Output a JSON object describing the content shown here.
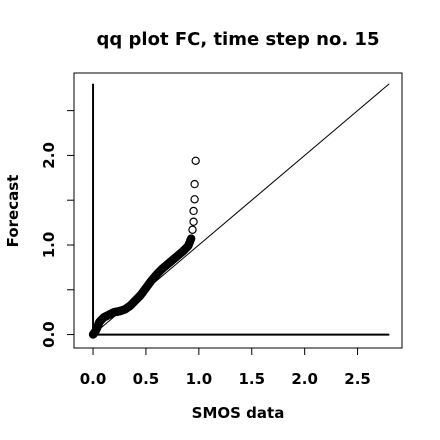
{
  "chart_data": {
    "type": "scatter",
    "title": "qq plot FC, time step no. 15",
    "xlabel": "SMOS data",
    "ylabel": "Forecast",
    "xlim": [
      -0.18,
      2.92
    ],
    "ylim": [
      -0.15,
      2.92
    ],
    "x_ticks": [
      0.0,
      0.5,
      1.0,
      1.5,
      2.0,
      2.5
    ],
    "x_tick_labels": [
      "0.0",
      "0.5",
      "1.0",
      "1.5",
      "2.0",
      "2.5"
    ],
    "y_ticks": [
      0.0,
      0.5,
      1.0,
      1.5,
      2.0,
      2.5
    ],
    "y_tick_labels": [
      "0.0",
      "",
      "1.0",
      "",
      "2.0",
      ""
    ],
    "reference_lines": [
      {
        "kind": "identity",
        "from": [
          0,
          0
        ],
        "to": [
          2.8,
          2.8
        ]
      },
      {
        "kind": "horizontal",
        "y": 0,
        "from_x": 0,
        "to_x": 2.8
      },
      {
        "kind": "vertical",
        "x": 0,
        "from_y": 0,
        "to_y": 2.8
      }
    ],
    "points_summary": "dense quantile curve from (0,0) to about (0.93,1.08), plus sparse upper-tail points",
    "curve_points": [
      [
        0.0,
        0.0
      ],
      [
        0.02,
        0.03
      ],
      [
        0.04,
        0.08
      ],
      [
        0.06,
        0.14
      ],
      [
        0.1,
        0.19
      ],
      [
        0.15,
        0.22
      ],
      [
        0.2,
        0.25
      ],
      [
        0.25,
        0.26
      ],
      [
        0.3,
        0.28
      ],
      [
        0.35,
        0.32
      ],
      [
        0.4,
        0.38
      ],
      [
        0.45,
        0.44
      ],
      [
        0.5,
        0.52
      ],
      [
        0.55,
        0.6
      ],
      [
        0.6,
        0.67
      ],
      [
        0.65,
        0.73
      ],
      [
        0.7,
        0.78
      ],
      [
        0.75,
        0.83
      ],
      [
        0.8,
        0.88
      ],
      [
        0.85,
        0.93
      ],
      [
        0.9,
        0.99
      ],
      [
        0.93,
        1.08
      ]
    ],
    "tail_points": [
      [
        0.94,
        1.17
      ],
      [
        0.95,
        1.26
      ],
      [
        0.95,
        1.38
      ],
      [
        0.96,
        1.51
      ],
      [
        0.96,
        1.68
      ],
      [
        0.97,
        1.94
      ]
    ],
    "grid": false,
    "legend": "none"
  }
}
